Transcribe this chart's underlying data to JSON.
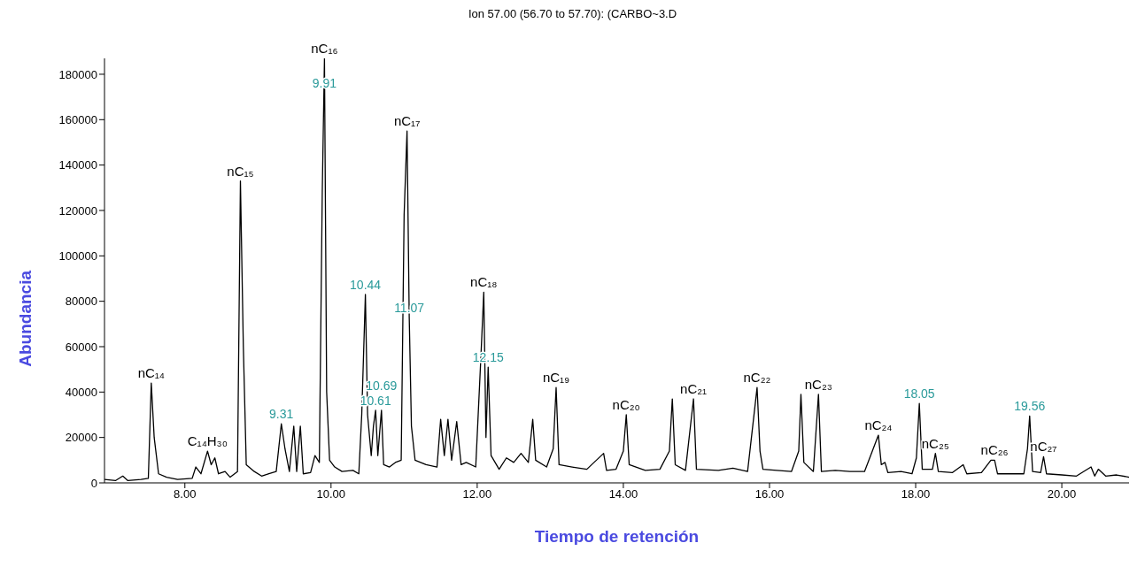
{
  "chart_data": {
    "type": "line",
    "title": "Ion 57.00 (56.70 to 57.70): (CARBO~3.D",
    "xlabel": "Tiempo de retención",
    "ylabel": "Abundancia",
    "x": [
      6.9,
      7.05,
      7.15,
      7.22,
      7.4,
      7.5,
      7.54,
      7.58,
      7.64,
      7.75,
      7.9,
      8.1,
      8.15,
      8.22,
      8.31,
      8.36,
      8.41,
      8.46,
      8.55,
      8.62,
      8.72,
      8.76,
      8.8,
      8.84,
      8.95,
      9.05,
      9.15,
      9.25,
      9.32,
      9.37,
      9.43,
      9.49,
      9.53,
      9.58,
      9.62,
      9.72,
      9.78,
      9.84,
      9.88,
      9.91,
      9.94,
      9.98,
      10.05,
      10.15,
      10.3,
      10.38,
      10.42,
      10.47,
      10.5,
      10.55,
      10.58,
      10.61,
      10.64,
      10.69,
      10.72,
      10.8,
      10.88,
      10.96,
      11.0,
      11.04,
      11.07,
      11.1,
      11.15,
      11.3,
      11.45,
      11.5,
      11.55,
      11.6,
      11.65,
      11.72,
      11.78,
      11.85,
      11.98,
      12.05,
      12.09,
      12.12,
      12.15,
      12.19,
      12.3,
      12.4,
      12.5,
      12.6,
      12.7,
      12.76,
      12.8,
      12.95,
      13.04,
      13.08,
      13.12,
      13.3,
      13.5,
      13.73,
      13.77,
      13.9,
      14.0,
      14.04,
      14.08,
      14.3,
      14.5,
      14.63,
      14.67,
      14.71,
      14.85,
      14.96,
      15.0,
      15.3,
      15.5,
      15.7,
      15.83,
      15.87,
      15.91,
      16.1,
      16.3,
      16.4,
      16.43,
      16.47,
      16.6,
      16.67,
      16.71,
      16.9,
      17.1,
      17.3,
      17.49,
      17.53,
      17.58,
      17.62,
      17.8,
      17.95,
      18.01,
      18.05,
      18.09,
      18.23,
      18.27,
      18.31,
      18.5,
      18.65,
      18.7,
      18.9,
      19.03,
      19.08,
      19.12,
      19.3,
      19.48,
      19.53,
      19.56,
      19.6,
      19.71,
      19.75,
      19.79,
      20.0,
      20.2,
      20.4,
      20.45,
      20.5,
      20.6,
      20.75,
      20.92
    ],
    "series": [
      {
        "color": "#000000",
        "values": [
          1500,
          1000,
          3000,
          1000,
          1500,
          2000,
          44000,
          20000,
          4000,
          2500,
          1500,
          2000,
          7000,
          4000,
          14000,
          8000,
          11000,
          4000,
          5000,
          2500,
          5000,
          133000,
          60000,
          8000,
          5000,
          3000,
          4000,
          5000,
          26000,
          15000,
          5000,
          25000,
          5000,
          25000,
          4000,
          4500,
          12000,
          9000,
          128000,
          187000,
          40000,
          10000,
          7000,
          5000,
          5500,
          4000,
          30000,
          83000,
          30000,
          12000,
          25000,
          32000,
          12000,
          32000,
          8000,
          7000,
          9000,
          10000,
          118000,
          155000,
          73000,
          25000,
          10000,
          8000,
          7000,
          28000,
          12000,
          28000,
          10000,
          27000,
          8000,
          9000,
          7000,
          55000,
          84000,
          20000,
          51000,
          12000,
          6000,
          11000,
          9000,
          13000,
          9000,
          28000,
          10000,
          7000,
          15000,
          42000,
          8000,
          7000,
          6000,
          13000,
          5500,
          6000,
          14000,
          30000,
          8000,
          5500,
          6000,
          14000,
          37000,
          8000,
          5500,
          37000,
          6000,
          5500,
          6500,
          5000,
          42000,
          14000,
          6000,
          5500,
          5000,
          14000,
          39000,
          9000,
          5000,
          39000,
          5000,
          5500,
          5000,
          5000,
          21000,
          8000,
          9000,
          4500,
          5000,
          4000,
          11000,
          35000,
          6000,
          6000,
          13000,
          5000,
          4500,
          8000,
          4000,
          4500,
          10000,
          10000,
          4000,
          4000,
          4000,
          15000,
          29500,
          5000,
          4500,
          11500,
          4000,
          3500,
          3000,
          7000,
          3000,
          6000,
          3000,
          3500,
          2500
        ]
      }
    ],
    "xlim": [
      6.9,
      20.92
    ],
    "xticks": [
      {
        "value": 8,
        "label": "8.00"
      },
      {
        "value": 10,
        "label": "10.00"
      },
      {
        "value": 12,
        "label": "12.00"
      },
      {
        "value": 14,
        "label": "14.00"
      },
      {
        "value": 16,
        "label": "16.00"
      },
      {
        "value": 18,
        "label": "18.00"
      },
      {
        "value": 20,
        "label": "20.00"
      }
    ],
    "ylim": [
      0,
      187000
    ],
    "yticks": [
      0,
      20000,
      40000,
      60000,
      80000,
      100000,
      120000,
      140000,
      160000,
      180000
    ],
    "grid": false,
    "legend": false,
    "marker": "none",
    "line_style": "solid",
    "annotations": [
      {
        "text": "nC₁₄",
        "x": 7.54,
        "y": 44000
      },
      {
        "text": "C₁₄H₃₀",
        "x": 8.31,
        "y": 14000
      },
      {
        "text": "nC₁₅",
        "x": 8.76,
        "y": 133000
      },
      {
        "text": "9.31",
        "x": 9.32,
        "y": 26000
      },
      {
        "text": "nC₁₆",
        "x": 9.91,
        "y": 187000
      },
      {
        "text": "9.91",
        "x": 9.91,
        "y": 172000
      },
      {
        "text": "10.44",
        "x": 10.47,
        "y": 83000
      },
      {
        "text": "10.61",
        "x": 10.61,
        "y": 32000
      },
      {
        "text": "10.69",
        "x": 10.69,
        "y": 32000
      },
      {
        "text": "nC₁₇",
        "x": 11.04,
        "y": 155000
      },
      {
        "text": "11.07",
        "x": 11.07,
        "y": 73000
      },
      {
        "text": "nC₁₈",
        "x": 12.09,
        "y": 84000
      },
      {
        "text": "12.15",
        "x": 12.15,
        "y": 51000
      },
      {
        "text": "nC₁₉",
        "x": 13.08,
        "y": 42000
      },
      {
        "text": "nC₂₀",
        "x": 14.04,
        "y": 30000
      },
      {
        "text": "nC₂₁",
        "x": 14.96,
        "y": 37000
      },
      {
        "text": "nC₂₂",
        "x": 15.83,
        "y": 42000
      },
      {
        "text": "nC₂₃",
        "x": 16.67,
        "y": 39000
      },
      {
        "text": "nC₂₄",
        "x": 17.49,
        "y": 21000
      },
      {
        "text": "18.05",
        "x": 18.05,
        "y": 35000
      },
      {
        "text": "nC₂₅",
        "x": 18.27,
        "y": 13000
      },
      {
        "text": "nC₂₆",
        "x": 19.08,
        "y": 10000
      },
      {
        "text": "19.56",
        "x": 19.56,
        "y": 29500
      },
      {
        "text": "nC₂₇",
        "x": 19.75,
        "y": 11500
      }
    ]
  }
}
